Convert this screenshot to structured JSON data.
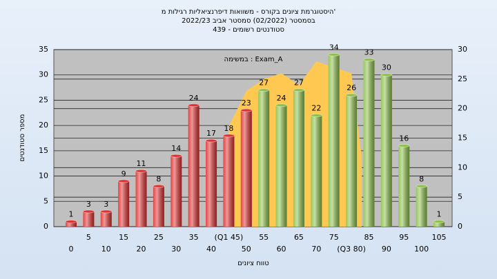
{
  "chart_data": {
    "type": "bar",
    "title": "היסטוגרמת ציונים בקורס - משוואות דיפרנציאליות רגילות מ'",
    "subtitle": [
      "בסמסטר (02/2022) סמסטר אביב 2022/23",
      "סטודנטים רשומים - 439"
    ],
    "annotation": "במשימה : Exam_A",
    "ylabel": "מספר סטודנטים",
    "xlabel": "טווח ציונים",
    "categories": [
      "0",
      "5",
      "10",
      "15",
      "20",
      "25",
      "30",
      "35",
      "40",
      "(Q1 45)",
      "50",
      "55",
      "60",
      "65",
      "70",
      "75",
      "(Q3 80)",
      "85",
      "90",
      "95",
      "100",
      "105"
    ],
    "series": [
      {
        "type": "area",
        "axis": "y2",
        "color": "#ffc850",
        "values": [
          null,
          null,
          null,
          null,
          null,
          null,
          null,
          null,
          null,
          17,
          23,
          25,
          26,
          24,
          28,
          27,
          26,
          null,
          null,
          null,
          null,
          null
        ]
      },
      {
        "type": "bar",
        "values": [
          1,
          3,
          3,
          9,
          11,
          8,
          14,
          24,
          17,
          18,
          23,
          27,
          24,
          27,
          22,
          34,
          26,
          33,
          30,
          16,
          8,
          1
        ],
        "colors": [
          "#e03030",
          "#e03030",
          "#e03030",
          "#e03030",
          "#e03030",
          "#e03030",
          "#e03030",
          "#e03030",
          "#e03030",
          "#e03030",
          "#e03030",
          "#8cc04a",
          "#8cc04a",
          "#8cc04a",
          "#8cc04a",
          "#8cc04a",
          "#8cc04a",
          "#8cc04a",
          "#8cc04a",
          "#8cc04a",
          "#8cc04a",
          "#8cc04a"
        ]
      }
    ],
    "ylim": [
      0,
      35
    ],
    "yticks": [
      0,
      5,
      10,
      15,
      20,
      25,
      30,
      35
    ],
    "y2lim": [
      0,
      30
    ],
    "y2ticks": [
      0,
      5,
      10,
      15,
      20,
      25,
      30
    ],
    "grid": true
  }
}
